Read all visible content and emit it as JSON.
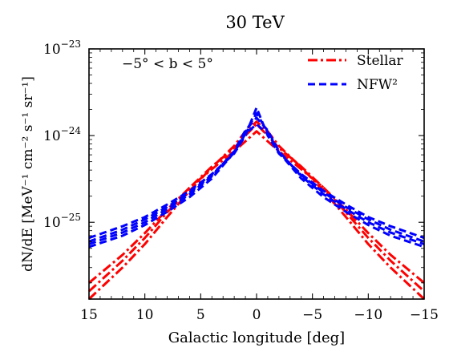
{
  "chart_data": {
    "type": "line",
    "title": "30 TeV",
    "xlabel": "Galactic longitude [deg]",
    "ylabel": "dN/dE [MeV⁻¹ cm⁻² s⁻¹ sr⁻¹]",
    "annotation": "−5° < b < 5°",
    "xlim": [
      15,
      -15
    ],
    "ylim": [
      1.3e-26,
      1e-23
    ],
    "yscale": "log",
    "grid": false,
    "legend_position": "top-right",
    "x_ticks": [
      {
        "value": 15,
        "label": "15"
      },
      {
        "value": 10,
        "label": "10"
      },
      {
        "value": 5,
        "label": "5"
      },
      {
        "value": 0,
        "label": "0"
      },
      {
        "value": -5,
        "label": "−5"
      },
      {
        "value": -10,
        "label": "−10"
      },
      {
        "value": -15,
        "label": "−15"
      }
    ],
    "y_ticks": [
      {
        "value": 1e-25,
        "base": "10",
        "exp": "−25"
      },
      {
        "value": 1e-24,
        "base": "10",
        "exp": "−24"
      },
      {
        "value": 1e-23,
        "base": "10",
        "exp": "−23"
      }
    ],
    "groups": [
      {
        "name": "Stellar",
        "color": "#ff0000",
        "style": "dash-dot",
        "x": [
          15,
          12,
          10,
          8,
          6,
          4,
          2,
          1,
          0,
          -1,
          -2,
          -4,
          -6,
          -8,
          -10,
          -12,
          -15
        ],
        "series": [
          {
            "values": [
              2e-26,
              4.2e-26,
              7.5e-26,
              1.4e-25,
              2.5e-25,
              4.1e-25,
              6.6e-25,
              8.6e-25,
              1.12e-24,
              8.6e-25,
              6.6e-25,
              4.1e-25,
              2.5e-25,
              1.4e-25,
              7.5e-26,
              4.2e-26,
              2e-26
            ]
          },
          {
            "values": [
              1.6e-26,
              3.6e-26,
              6.6e-26,
              1.3e-25,
              2.5e-25,
              4.4e-25,
              7.2e-25,
              1e-24,
              1.35e-24,
              1e-24,
              7.2e-25,
              4.4e-25,
              2.5e-25,
              1.3e-25,
              6.6e-26,
              3.6e-26,
              1.6e-26
            ]
          },
          {
            "values": [
              1.3e-26,
              3e-26,
              5.6e-26,
              1.15e-25,
              2.3e-25,
              4.3e-25,
              7.6e-25,
              1.12e-24,
              1.45e-24,
              1.12e-24,
              7.6e-25,
              4.3e-25,
              2.3e-25,
              1.15e-25,
              5.6e-26,
              3e-26,
              1.3e-26
            ]
          }
        ]
      },
      {
        "name": "NFW²",
        "color": "#0000ff",
        "style": "dashed",
        "x": [
          15,
          12,
          10,
          8,
          6,
          4,
          2,
          1,
          0,
          -1,
          -2,
          -4,
          -6,
          -8,
          -10,
          -12,
          -15
        ],
        "series": [
          {
            "values": [
              6.6e-26,
              9e-26,
              1.15e-25,
              1.6e-25,
              2.3e-25,
              3.6e-25,
              6.2e-25,
              1e-24,
              2.1e-24,
              1e-24,
              6.2e-25,
              3.6e-25,
              2.3e-25,
              1.6e-25,
              1.15e-25,
              9e-26,
              6.6e-26
            ]
          },
          {
            "values": [
              6e-26,
              8.2e-26,
              1.08e-25,
              1.5e-25,
              2.2e-25,
              3.5e-25,
              6.4e-25,
              1.1e-24,
              1.8e-24,
              1.1e-24,
              6.4e-25,
              3.5e-25,
              2.2e-25,
              1.5e-25,
              1.08e-25,
              8.2e-26,
              6e-26
            ]
          },
          {
            "values": [
              5.6e-26,
              7.6e-26,
              1e-25,
              1.42e-25,
              2.1e-25,
              3.4e-25,
              6.6e-25,
              1.15e-24,
              1.6e-24,
              1.15e-24,
              6.6e-25,
              3.4e-25,
              2.1e-25,
              1.42e-25,
              1e-25,
              7.6e-26,
              5.6e-26
            ]
          },
          {
            "values": [
              5.2e-26,
              7e-26,
              9.3e-26,
              1.32e-25,
              1.95e-25,
              3.2e-25,
              6.4e-25,
              1.05e-24,
              1.35e-24,
              1.05e-24,
              6.4e-25,
              3.2e-25,
              1.95e-25,
              1.32e-25,
              9.3e-26,
              7e-26,
              5.2e-26
            ]
          }
        ]
      }
    ]
  }
}
